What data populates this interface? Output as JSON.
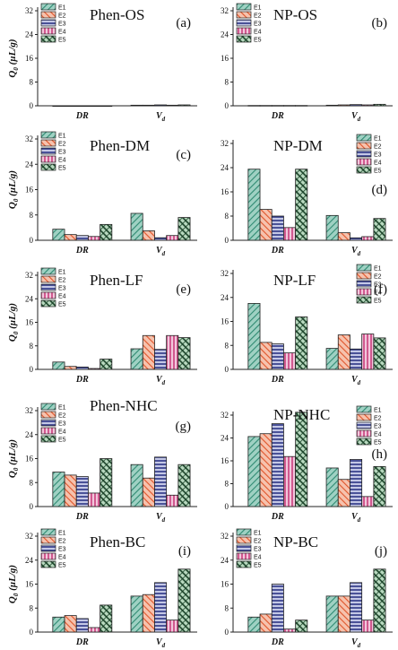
{
  "colors": {
    "E1": "#3f9c82",
    "E2": "#e86a3a",
    "E3": "#35408f",
    "E4": "#d94d8a",
    "E5": "#1f5a35"
  },
  "chart_data": [
    {
      "type": "bar",
      "title": "Phen-OS",
      "panel_label": "(a)",
      "ylabel": "Q0 (µL/g)",
      "categories": [
        "DR",
        "Vd"
      ],
      "ylim": [
        0,
        32
      ],
      "yticks": [
        0,
        8,
        16,
        24,
        32
      ],
      "legend": "top-left",
      "series": [
        {
          "name": "E1",
          "values": [
            0.0,
            0.2
          ]
        },
        {
          "name": "E2",
          "values": [
            0.0,
            0.2
          ]
        },
        {
          "name": "E3",
          "values": [
            0.0,
            0.3
          ]
        },
        {
          "name": "E4",
          "values": [
            0.0,
            0.2
          ]
        },
        {
          "name": "E5",
          "values": [
            0.0,
            0.3
          ]
        }
      ]
    },
    {
      "type": "bar",
      "title": "NP-OS",
      "panel_label": "(b)",
      "ylabel": "",
      "categories": [
        "DR",
        "Vd"
      ],
      "ylim": [
        0,
        32
      ],
      "yticks": [
        0,
        8,
        16,
        24,
        32
      ],
      "legend": "top-left",
      "series": [
        {
          "name": "E1",
          "values": [
            0.1,
            0.2
          ]
        },
        {
          "name": "E2",
          "values": [
            0.1,
            0.3
          ]
        },
        {
          "name": "E3",
          "values": [
            0.1,
            0.4
          ]
        },
        {
          "name": "E4",
          "values": [
            0.1,
            0.3
          ]
        },
        {
          "name": "E5",
          "values": [
            0.1,
            0.5
          ]
        }
      ]
    },
    {
      "type": "bar",
      "title": "Phen-DM",
      "panel_label": "(c)",
      "ylabel": "Q0 (µL/g)",
      "categories": [
        "DR",
        "Vd"
      ],
      "ylim": [
        0,
        32
      ],
      "yticks": [
        0,
        8,
        16,
        24,
        32
      ],
      "legend": "top-left",
      "series": [
        {
          "name": "E1",
          "values": [
            3.5,
            8.5
          ]
        },
        {
          "name": "E2",
          "values": [
            1.8,
            3.0
          ]
        },
        {
          "name": "E3",
          "values": [
            1.5,
            0.8
          ]
        },
        {
          "name": "E4",
          "values": [
            1.2,
            1.5
          ]
        },
        {
          "name": "E5",
          "values": [
            5.0,
            7.2
          ]
        }
      ]
    },
    {
      "type": "bar",
      "title": "NP-DM",
      "panel_label": "(d)",
      "ylabel": "",
      "categories": [
        "DR",
        "Vd"
      ],
      "ylim": [
        0,
        32
      ],
      "yticks": [
        0,
        8,
        16,
        24,
        32
      ],
      "legend": "top-right",
      "series": [
        {
          "name": "E1",
          "values": [
            23.5,
            8.2
          ]
        },
        {
          "name": "E2",
          "values": [
            10.2,
            2.5
          ]
        },
        {
          "name": "E3",
          "values": [
            8.0,
            0.8
          ]
        },
        {
          "name": "E4",
          "values": [
            4.2,
            1.2
          ]
        },
        {
          "name": "E5",
          "values": [
            23.5,
            7.2
          ]
        }
      ]
    },
    {
      "type": "bar",
      "title": "Phen-LF",
      "panel_label": "(e)",
      "ylabel": "Q0 (µL/g)",
      "categories": [
        "DR",
        "Vd"
      ],
      "ylim": [
        0,
        32
      ],
      "yticks": [
        0,
        8,
        16,
        24,
        32
      ],
      "legend": "top-left",
      "series": [
        {
          "name": "E1",
          "values": [
            2.5,
            7.0
          ]
        },
        {
          "name": "E2",
          "values": [
            1.0,
            11.5
          ]
        },
        {
          "name": "E3",
          "values": [
            0.8,
            6.8
          ]
        },
        {
          "name": "E4",
          "values": [
            0.3,
            11.5
          ]
        },
        {
          "name": "E5",
          "values": [
            3.5,
            10.8
          ]
        }
      ]
    },
    {
      "type": "bar",
      "title": "NP-LF",
      "panel_label": "(f)",
      "ylabel": "",
      "categories": [
        "DR",
        "Vd"
      ],
      "ylim": [
        0,
        32
      ],
      "yticks": [
        0,
        8,
        16,
        24,
        32
      ],
      "legend": "top-right",
      "series": [
        {
          "name": "E1",
          "values": [
            22.0,
            7.0
          ]
        },
        {
          "name": "E2",
          "values": [
            9.0,
            11.5
          ]
        },
        {
          "name": "E3",
          "values": [
            8.5,
            6.8
          ]
        },
        {
          "name": "E4",
          "values": [
            5.5,
            11.8
          ]
        },
        {
          "name": "E5",
          "values": [
            17.5,
            10.5
          ]
        }
      ]
    },
    {
      "type": "bar",
      "title": "Phen-NHC",
      "panel_label": "(g)",
      "ylabel": "Q0 (µL/g)",
      "categories": [
        "DR",
        "Vd"
      ],
      "ylim": [
        0,
        32
      ],
      "yticks": [
        0,
        8,
        16,
        24,
        32
      ],
      "legend": "top-left",
      "series": [
        {
          "name": "E1",
          "values": [
            11.5,
            14.0
          ]
        },
        {
          "name": "E2",
          "values": [
            10.5,
            9.5
          ]
        },
        {
          "name": "E3",
          "values": [
            10.0,
            16.5
          ]
        },
        {
          "name": "E4",
          "values": [
            4.5,
            3.8
          ]
        },
        {
          "name": "E5",
          "values": [
            16.0,
            14.0
          ]
        }
      ]
    },
    {
      "type": "bar",
      "title": "NP-NHC",
      "panel_label": "(h)",
      "ylabel": "",
      "categories": [
        "DR",
        "Vd"
      ],
      "ylim": [
        0,
        32
      ],
      "yticks": [
        0,
        8,
        16,
        24,
        32
      ],
      "legend": "top-right",
      "series": [
        {
          "name": "E1",
          "values": [
            24.5,
            13.5
          ]
        },
        {
          "name": "E2",
          "values": [
            25.5,
            9.5
          ]
        },
        {
          "name": "E3",
          "values": [
            29.0,
            16.5
          ]
        },
        {
          "name": "E4",
          "values": [
            17.5,
            3.5
          ]
        },
        {
          "name": "E5",
          "values": [
            33.0,
            14.0
          ]
        }
      ]
    },
    {
      "type": "bar",
      "title": "Phen-BC",
      "panel_label": "(i)",
      "ylabel": "Q0 (µL/g)",
      "categories": [
        "DR",
        "Vd"
      ],
      "ylim": [
        0,
        32
      ],
      "yticks": [
        0,
        8,
        16,
        24,
        32
      ],
      "legend": "top-left",
      "series": [
        {
          "name": "E1",
          "values": [
            5.0,
            12.0
          ]
        },
        {
          "name": "E2",
          "values": [
            5.5,
            12.5
          ]
        },
        {
          "name": "E3",
          "values": [
            4.5,
            16.5
          ]
        },
        {
          "name": "E4",
          "values": [
            1.5,
            4.0
          ]
        },
        {
          "name": "E5",
          "values": [
            9.0,
            21.0
          ]
        }
      ]
    },
    {
      "type": "bar",
      "title": "NP-BC",
      "panel_label": "(j)",
      "ylabel": "",
      "categories": [
        "DR",
        "Vd"
      ],
      "ylim": [
        0,
        32
      ],
      "yticks": [
        0,
        8,
        16,
        24,
        32
      ],
      "legend": "top-left",
      "series": [
        {
          "name": "E1",
          "values": [
            5.0,
            12.0
          ]
        },
        {
          "name": "E2",
          "values": [
            6.0,
            12.0
          ]
        },
        {
          "name": "E3",
          "values": [
            16.0,
            16.5
          ]
        },
        {
          "name": "E4",
          "values": [
            1.0,
            4.0
          ]
        },
        {
          "name": "E5",
          "values": [
            4.0,
            21.0
          ]
        }
      ]
    }
  ]
}
